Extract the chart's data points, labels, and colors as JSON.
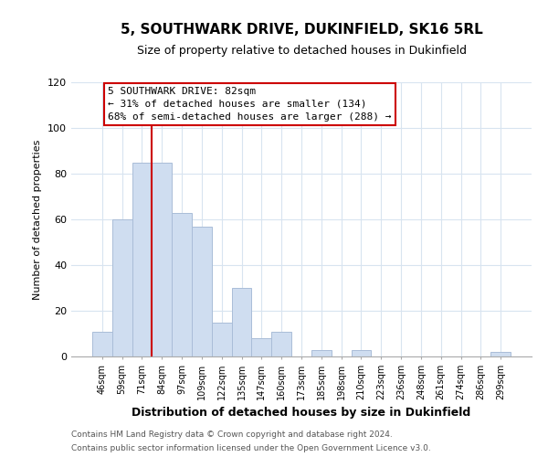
{
  "title": "5, SOUTHWARK DRIVE, DUKINFIELD, SK16 5RL",
  "subtitle": "Size of property relative to detached houses in Dukinfield",
  "xlabel": "Distribution of detached houses by size in Dukinfield",
  "ylabel": "Number of detached properties",
  "bar_labels": [
    "46sqm",
    "59sqm",
    "71sqm",
    "84sqm",
    "97sqm",
    "109sqm",
    "122sqm",
    "135sqm",
    "147sqm",
    "160sqm",
    "173sqm",
    "185sqm",
    "198sqm",
    "210sqm",
    "223sqm",
    "236sqm",
    "248sqm",
    "261sqm",
    "274sqm",
    "286sqm",
    "299sqm"
  ],
  "bar_values": [
    11,
    60,
    85,
    85,
    63,
    57,
    15,
    30,
    8,
    11,
    0,
    3,
    0,
    3,
    0,
    0,
    0,
    0,
    0,
    0,
    2
  ],
  "bar_color": "#cfddf0",
  "bar_edge_color": "#aabdd8",
  "vline_x_index": 3,
  "vline_color": "#cc0000",
  "ylim": [
    0,
    120
  ],
  "yticks": [
    0,
    20,
    40,
    60,
    80,
    100,
    120
  ],
  "annotation_line1": "5 SOUTHWARK DRIVE: 82sqm",
  "annotation_line2": "← 31% of detached houses are smaller (134)",
  "annotation_line3": "68% of semi-detached houses are larger (288) →",
  "footer_line1": "Contains HM Land Registry data © Crown copyright and database right 2024.",
  "footer_line2": "Contains public sector information licensed under the Open Government Licence v3.0.",
  "background_color": "#ffffff",
  "grid_color": "#d8e4f0"
}
